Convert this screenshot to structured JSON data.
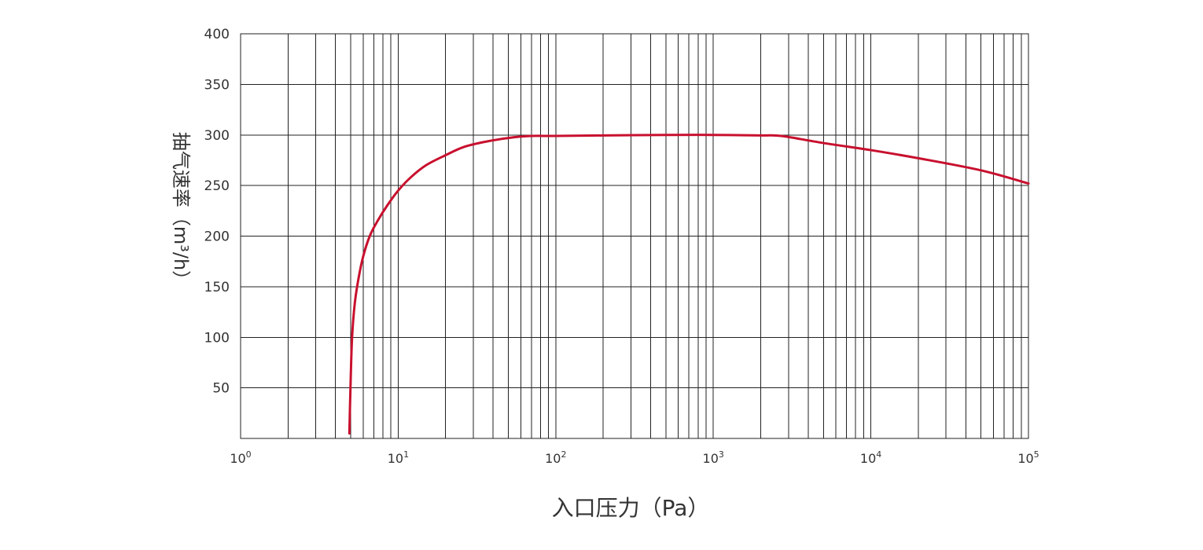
{
  "chart_data": {
    "type": "line",
    "title": "",
    "xlabel": "入口压力（Pa）",
    "ylabel": "抽气速率（m³/h）",
    "xscale": "log",
    "xlim": [
      1,
      100000
    ],
    "ylim": [
      0,
      400
    ],
    "grid": true,
    "x_ticks": [
      {
        "base": "10",
        "exp": "0",
        "value": 1
      },
      {
        "base": "10",
        "exp": "1",
        "value": 10
      },
      {
        "base": "10",
        "exp": "2",
        "value": 100
      },
      {
        "base": "10",
        "exp": "3",
        "value": 1000
      },
      {
        "base": "10",
        "exp": "4",
        "value": 10000
      },
      {
        "base": "10",
        "exp": "5",
        "value": 100000
      }
    ],
    "y_ticks": [
      {
        "label": "50",
        "value": 50
      },
      {
        "label": "100",
        "value": 100
      },
      {
        "label": "150",
        "value": 150
      },
      {
        "label": "200",
        "value": 200
      },
      {
        "label": "250",
        "value": 250
      },
      {
        "label": "300",
        "value": 300
      },
      {
        "label": "350",
        "value": 350
      },
      {
        "label": "400",
        "value": 400
      }
    ],
    "series": [
      {
        "color": "#c8102e",
        "x": [
          4.9,
          5.0,
          5.1,
          5.3,
          5.6,
          6.0,
          6.6,
          7.4,
          8.5,
          10,
          12,
          15,
          20,
          26,
          35,
          50,
          70,
          100,
          200,
          500,
          1000,
          2000,
          2700,
          5000,
          10000,
          20000,
          50000,
          100000
        ],
        "y": [
          5,
          60,
          100,
          133,
          158,
          180,
          200,
          215,
          230,
          245,
          258,
          270,
          280,
          288,
          293,
          297,
          299,
          299,
          299.5,
          300,
          300,
          299.5,
          299,
          292,
          285,
          277,
          265,
          252
        ]
      }
    ]
  }
}
